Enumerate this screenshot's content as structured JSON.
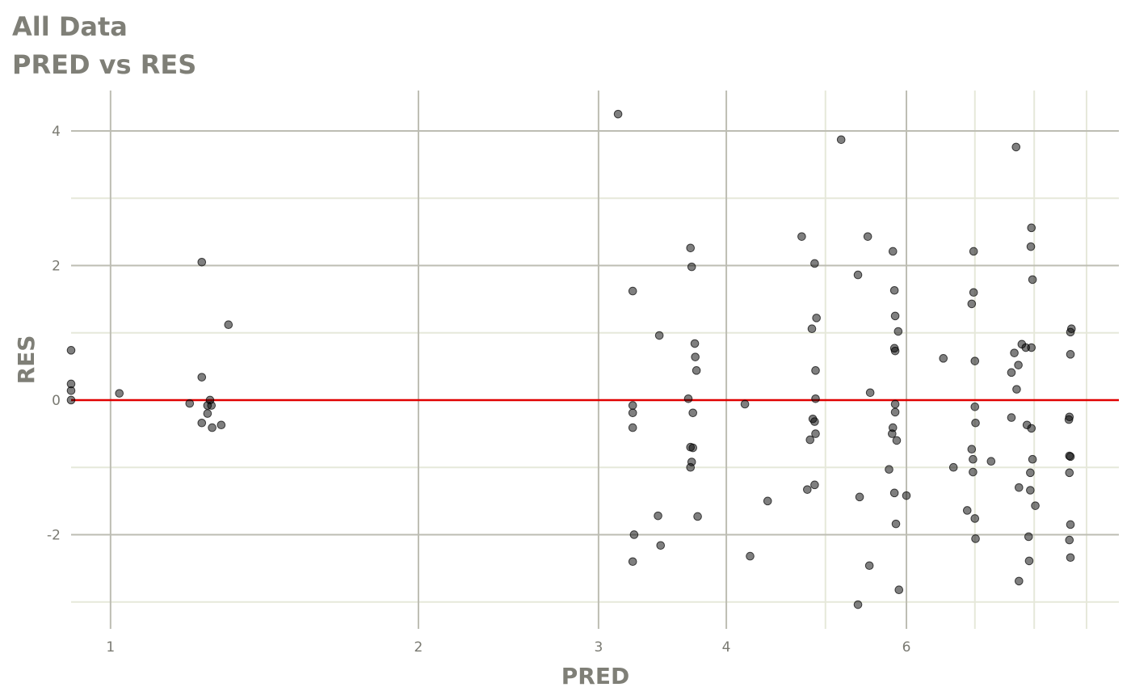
{
  "chart_data": {
    "type": "scatter",
    "title": "All Data",
    "subtitle": "PRED vs RES",
    "xlabel": "PRED",
    "ylabel": "RES",
    "x_scale": "log",
    "xlim": [
      0.915,
      9.68
    ],
    "ylim": [
      -3.4,
      4.6
    ],
    "x_ticks": [
      1,
      2,
      3,
      4,
      6
    ],
    "x_tick_labels": [
      "1",
      "2",
      "3",
      "4",
      "6"
    ],
    "x_minor_grid": [
      5,
      7,
      8,
      9
    ],
    "y_ticks": [
      -2,
      0,
      2,
      4
    ],
    "y_tick_labels": [
      "-2",
      "0",
      "2",
      "4"
    ],
    "y_minor_grid": [
      -3,
      -1,
      1,
      3
    ],
    "grid": true,
    "reference_line": {
      "y": 0,
      "color": "#e00000"
    },
    "point_color": "#000000",
    "point_alpha": 0.5,
    "points": [
      [
        0.915,
        0.74
      ],
      [
        0.915,
        0.24
      ],
      [
        0.915,
        0.14
      ],
      [
        0.915,
        0
      ],
      [
        1.02,
        0.1
      ],
      [
        1.228,
        2.05
      ],
      [
        1.304,
        1.12
      ],
      [
        1.228,
        0.34
      ],
      [
        1.195,
        -0.05
      ],
      [
        1.251,
        0
      ],
      [
        1.244,
        -0.08
      ],
      [
        1.255,
        -0.08
      ],
      [
        1.244,
        -0.2
      ],
      [
        1.228,
        -0.34
      ],
      [
        1.257,
        -0.41
      ],
      [
        1.283,
        -0.37
      ],
      [
        3.135,
        4.25
      ],
      [
        3.24,
        1.62
      ],
      [
        3.24,
        -0.08
      ],
      [
        3.24,
        -0.19
      ],
      [
        3.24,
        -0.41
      ],
      [
        3.25,
        -2.0
      ],
      [
        3.24,
        -2.4
      ],
      [
        3.44,
        0.96
      ],
      [
        3.43,
        -1.72
      ],
      [
        3.45,
        -2.16
      ],
      [
        3.69,
        2.26
      ],
      [
        3.7,
        1.98
      ],
      [
        3.726,
        0.84
      ],
      [
        3.73,
        0.64
      ],
      [
        3.74,
        0.44
      ],
      [
        3.672,
        0.02
      ],
      [
        3.71,
        -0.19
      ],
      [
        3.69,
        -0.7
      ],
      [
        3.71,
        -0.71
      ],
      [
        3.7,
        -0.92
      ],
      [
        3.69,
        -1.0
      ],
      [
        3.75,
        -1.73
      ],
      [
        4.171,
        -0.06
      ],
      [
        4.22,
        -2.32
      ],
      [
        4.39,
        -1.5
      ],
      [
        4.74,
        2.43
      ],
      [
        4.88,
        2.03
      ],
      [
        4.9,
        1.22
      ],
      [
        4.85,
        1.06
      ],
      [
        4.89,
        0.44
      ],
      [
        4.89,
        0.02
      ],
      [
        4.86,
        -0.28
      ],
      [
        4.88,
        -0.32
      ],
      [
        4.89,
        -0.5
      ],
      [
        4.83,
        -0.59
      ],
      [
        4.8,
        -1.33
      ],
      [
        4.88,
        -1.26
      ],
      [
        5.18,
        3.87
      ],
      [
        5.38,
        1.86
      ],
      [
        5.5,
        2.43
      ],
      [
        5.53,
        0.11
      ],
      [
        5.4,
        -1.44
      ],
      [
        5.52,
        -2.46
      ],
      [
        5.38,
        -3.04
      ],
      [
        5.82,
        2.21
      ],
      [
        5.84,
        1.63
      ],
      [
        5.85,
        1.25
      ],
      [
        5.89,
        1.02
      ],
      [
        5.84,
        0.77
      ],
      [
        5.85,
        0.73
      ],
      [
        5.85,
        -0.06
      ],
      [
        5.85,
        -0.18
      ],
      [
        5.82,
        -0.41
      ],
      [
        5.81,
        -0.5
      ],
      [
        5.87,
        -0.6
      ],
      [
        5.77,
        -1.03
      ],
      [
        5.84,
        -1.38
      ],
      [
        5.86,
        -1.84
      ],
      [
        5.9,
        -2.82
      ],
      [
        6.0,
        -1.42
      ],
      [
        6.52,
        0.62
      ],
      [
        6.67,
        -1.0
      ],
      [
        6.98,
        2.21
      ],
      [
        6.98,
        1.6
      ],
      [
        6.95,
        1.43
      ],
      [
        7.0,
        0.58
      ],
      [
        7.0,
        -0.1
      ],
      [
        7.01,
        -0.34
      ],
      [
        6.95,
        -0.73
      ],
      [
        6.97,
        -0.88
      ],
      [
        6.97,
        -1.07
      ],
      [
        6.88,
        -1.64
      ],
      [
        7.0,
        -1.76
      ],
      [
        7.01,
        -2.06
      ],
      [
        7.26,
        -0.91
      ],
      [
        7.68,
        3.76
      ],
      [
        7.95,
        2.56
      ],
      [
        7.94,
        2.28
      ],
      [
        7.97,
        1.79
      ],
      [
        7.78,
        0.83
      ],
      [
        7.85,
        0.78
      ],
      [
        7.95,
        0.78
      ],
      [
        7.65,
        0.7
      ],
      [
        7.72,
        0.52
      ],
      [
        7.6,
        0.41
      ],
      [
        7.69,
        0.16
      ],
      [
        7.6,
        -0.26
      ],
      [
        7.87,
        -0.37
      ],
      [
        7.95,
        -0.42
      ],
      [
        7.97,
        -0.88
      ],
      [
        7.93,
        -1.08
      ],
      [
        7.73,
        -1.3
      ],
      [
        7.93,
        -1.34
      ],
      [
        8.02,
        -1.57
      ],
      [
        7.9,
        -2.03
      ],
      [
        7.91,
        -2.39
      ],
      [
        7.73,
        -2.69
      ],
      [
        8.7,
        1.06
      ],
      [
        8.68,
        1.01
      ],
      [
        8.68,
        0.68
      ],
      [
        8.66,
        -0.25
      ],
      [
        8.65,
        -0.29
      ],
      [
        8.66,
        -0.83
      ],
      [
        8.68,
        -0.84
      ],
      [
        8.66,
        -1.08
      ],
      [
        8.68,
        -1.85
      ],
      [
        8.66,
        -2.08
      ],
      [
        8.68,
        -2.34
      ]
    ]
  }
}
